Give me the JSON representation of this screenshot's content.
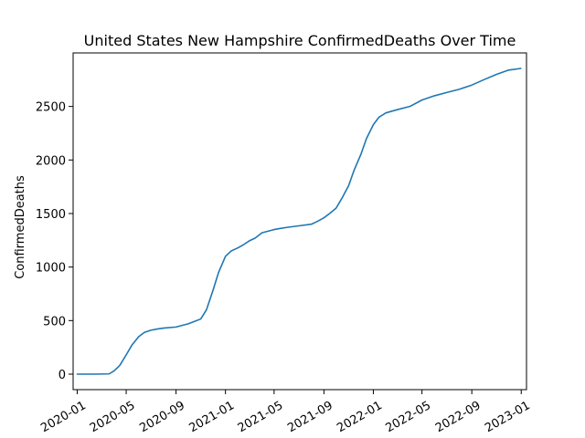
{
  "chart_data": {
    "type": "line",
    "title": "United States New Hampshire ConfirmedDeaths Over Time",
    "xlabel": "",
    "ylabel": "ConfirmedDeaths",
    "x_axis_type": "date",
    "xlim": [
      "2019-12-22",
      "2023-01-14"
    ],
    "ylim": [
      -145,
      3000
    ],
    "grid": false,
    "legend": "none",
    "line_color": "#1f77b4",
    "x_ticks": [
      "2020-01-01",
      "2020-05-01",
      "2020-09-01",
      "2021-01-01",
      "2021-05-01",
      "2021-09-01",
      "2022-01-01",
      "2022-05-01",
      "2022-09-01",
      "2023-01-01"
    ],
    "x_tick_labels": [
      "2020-01",
      "2020-05",
      "2020-09",
      "2021-01",
      "2021-05",
      "2021-09",
      "2022-01",
      "2022-05",
      "2022-09",
      "2023-01"
    ],
    "y_ticks": [
      0,
      500,
      1000,
      1500,
      2000,
      2500
    ],
    "y_tick_labels": [
      "0",
      "500",
      "1000",
      "1500",
      "2000",
      "2500"
    ],
    "series": [
      {
        "x": [
          "2020-01-01",
          "2020-02-15",
          "2020-03-20",
          "2020-04-01",
          "2020-04-15",
          "2020-05-01",
          "2020-05-15",
          "2020-06-01",
          "2020-06-15",
          "2020-07-01",
          "2020-07-15",
          "2020-08-01",
          "2020-09-01",
          "2020-10-01",
          "2020-10-15",
          "2020-11-01",
          "2020-11-15",
          "2020-12-01",
          "2020-12-15",
          "2021-01-01",
          "2021-01-15",
          "2021-02-01",
          "2021-02-15",
          "2021-03-01",
          "2021-03-15",
          "2021-04-01",
          "2021-05-01",
          "2021-05-15",
          "2021-06-01",
          "2021-07-01",
          "2021-08-01",
          "2021-08-15",
          "2021-09-01",
          "2021-09-15",
          "2021-10-01",
          "2021-10-15",
          "2021-11-01",
          "2021-11-15",
          "2021-12-01",
          "2021-12-15",
          "2022-01-01",
          "2022-01-15",
          "2022-02-01",
          "2022-02-15",
          "2022-03-01",
          "2022-04-01",
          "2022-05-01",
          "2022-06-01",
          "2022-07-01",
          "2022-08-01",
          "2022-09-01",
          "2022-10-01",
          "2022-11-01",
          "2022-12-01",
          "2022-12-31"
        ],
        "y": [
          0,
          0,
          2,
          30,
          80,
          180,
          270,
          350,
          390,
          410,
          420,
          430,
          440,
          470,
          490,
          515,
          600,
          780,
          950,
          1100,
          1150,
          1180,
          1210,
          1245,
          1270,
          1320,
          1350,
          1360,
          1370,
          1385,
          1400,
          1425,
          1460,
          1500,
          1550,
          1640,
          1760,
          1910,
          2050,
          2200,
          2330,
          2400,
          2440,
          2455,
          2470,
          2500,
          2560,
          2600,
          2630,
          2660,
          2700,
          2750,
          2800,
          2840,
          2855
        ]
      }
    ]
  }
}
